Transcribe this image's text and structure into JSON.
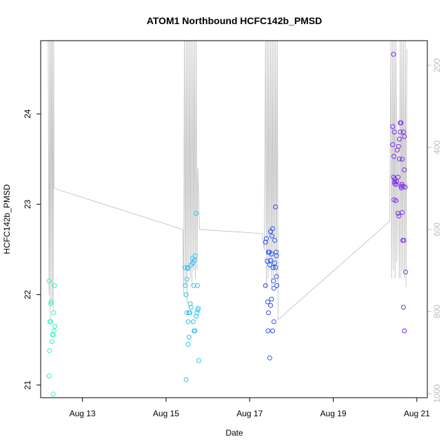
{
  "chart_data": {
    "type": "scatter",
    "title": "ATOM1 Northbound HCFC142b_PMSD",
    "xlabel": "Date",
    "ylabel": "HCFC142b_PMSD",
    "x_ticks": [
      "Aug 13",
      "Aug 15",
      "Aug 17",
      "Aug 19",
      "Aug 21"
    ],
    "x_tick_values": [
      13,
      15,
      17,
      19,
      21
    ],
    "xlim": [
      12.0,
      21.25
    ],
    "y_ticks": [
      "21",
      "22",
      "23",
      "24"
    ],
    "y_tick_values": [
      21,
      22,
      23,
      24
    ],
    "ylim": [
      20.86,
      24.81
    ],
    "y2_ticks": [
      "200",
      "400",
      "600",
      "800",
      "1000"
    ],
    "y2_tick_values": [
      200,
      400,
      600,
      800,
      1000
    ],
    "y2lim": [
      1010,
      140
    ],
    "grid": false,
    "series": [
      {
        "color": "#2cf5c6",
        "points": [
          [
            12.2,
            22.15
          ],
          [
            12.22,
            21.7
          ],
          [
            12.24,
            21.9
          ],
          [
            12.25,
            21.92
          ],
          [
            12.24,
            21.7
          ],
          [
            12.21,
            21.38
          ],
          [
            12.2,
            21.1
          ],
          [
            12.27,
            21.48
          ],
          [
            12.28,
            21.56
          ],
          [
            12.3,
            21.55
          ],
          [
            12.31,
            21.8
          ],
          [
            12.32,
            21.6
          ],
          [
            12.34,
            21.65
          ],
          [
            12.33,
            22.1
          ],
          [
            12.3,
            20.9
          ]
        ]
      },
      {
        "color": "#2ec1f5",
        "points": [
          [
            15.45,
            22.3
          ],
          [
            15.46,
            22.1
          ],
          [
            15.48,
            22.0
          ],
          [
            15.5,
            22.17
          ],
          [
            15.52,
            22.29
          ],
          [
            15.51,
            22.3
          ],
          [
            15.5,
            21.8
          ],
          [
            15.53,
            21.7
          ],
          [
            15.55,
            21.8
          ],
          [
            15.57,
            21.8
          ],
          [
            15.58,
            21.9
          ],
          [
            15.6,
            21.86
          ],
          [
            15.6,
            22.33
          ],
          [
            15.63,
            22.4
          ],
          [
            15.64,
            22.35
          ],
          [
            15.65,
            21.7
          ],
          [
            15.66,
            22.1
          ],
          [
            15.68,
            22.38
          ],
          [
            15.7,
            22.43
          ],
          [
            15.67,
            21.6
          ],
          [
            15.69,
            21.6
          ],
          [
            15.72,
            21.76
          ],
          [
            15.74,
            21.8
          ],
          [
            15.76,
            21.83
          ],
          [
            15.77,
            21.85
          ],
          [
            15.75,
            22.1
          ],
          [
            15.72,
            22.9
          ],
          [
            15.78,
            21.27
          ],
          [
            15.55,
            21.53
          ],
          [
            15.53,
            21.45
          ],
          [
            15.48,
            21.06
          ]
        ]
      },
      {
        "color": "#2750f0",
        "points": [
          [
            17.38,
            22.58
          ],
          [
            17.4,
            22.62
          ],
          [
            17.42,
            22.37
          ],
          [
            17.38,
            22.1
          ],
          [
            17.43,
            21.92
          ],
          [
            17.45,
            22.47
          ],
          [
            17.47,
            22.47
          ],
          [
            17.48,
            22.33
          ],
          [
            17.5,
            22.38
          ],
          [
            17.5,
            22.7
          ],
          [
            17.52,
            22.45
          ],
          [
            17.53,
            22.65
          ],
          [
            17.55,
            22.73
          ],
          [
            17.56,
            22.3
          ],
          [
            17.57,
            22.15
          ],
          [
            17.58,
            22.07
          ],
          [
            17.6,
            22.6
          ],
          [
            17.6,
            22.35
          ],
          [
            17.62,
            22.3
          ],
          [
            17.63,
            22.47
          ],
          [
            17.64,
            22.43
          ],
          [
            17.65,
            22.1
          ],
          [
            17.62,
            22.97
          ],
          [
            17.64,
            22.2
          ],
          [
            17.5,
            21.88
          ],
          [
            17.52,
            21.95
          ],
          [
            17.45,
            21.8
          ],
          [
            17.44,
            21.6
          ],
          [
            17.55,
            21.6
          ],
          [
            17.58,
            21.7
          ],
          [
            17.48,
            21.3
          ]
        ]
      },
      {
        "color": "#7a28ef",
        "points": [
          [
            20.44,
            24.66
          ],
          [
            20.42,
            23.86
          ],
          [
            20.46,
            23.8
          ],
          [
            20.45,
            23.53
          ],
          [
            20.42,
            23.66
          ],
          [
            20.44,
            23.3
          ],
          [
            20.47,
            23.28
          ],
          [
            20.47,
            23.23
          ],
          [
            20.5,
            23.22
          ],
          [
            20.52,
            23.25
          ],
          [
            20.55,
            23.3
          ],
          [
            20.53,
            23.6
          ],
          [
            20.56,
            23.64
          ],
          [
            20.58,
            23.72
          ],
          [
            20.58,
            23.5
          ],
          [
            20.6,
            23.9
          ],
          [
            20.6,
            23.8
          ],
          [
            20.62,
            23.9
          ],
          [
            20.62,
            23.2
          ],
          [
            20.63,
            23.18
          ],
          [
            20.64,
            23.22
          ],
          [
            20.65,
            23.5
          ],
          [
            20.67,
            23.2
          ],
          [
            20.68,
            23.8
          ],
          [
            20.7,
            23.75
          ],
          [
            20.7,
            23.38
          ],
          [
            20.72,
            23.19
          ],
          [
            20.45,
            23.05
          ],
          [
            20.5,
            23.04
          ],
          [
            20.55,
            22.9
          ],
          [
            20.57,
            22.87
          ],
          [
            20.65,
            22.91
          ],
          [
            20.66,
            22.6
          ],
          [
            20.69,
            22.6
          ],
          [
            20.73,
            22.25
          ],
          [
            20.68,
            21.86
          ],
          [
            20.7,
            21.6
          ],
          [
            20.47,
            23.25
          ]
        ]
      }
    ],
    "secondary_line": {
      "color": "#c8c8c8",
      "points": [
        [
          12.18,
          140
        ],
        [
          12.2,
          760
        ],
        [
          12.22,
          140
        ],
        [
          12.23,
          820
        ],
        [
          12.25,
          140
        ],
        [
          12.27,
          780
        ],
        [
          12.28,
          140
        ],
        [
          12.3,
          800
        ],
        [
          12.31,
          140
        ],
        [
          12.32,
          500
        ],
        [
          15.4,
          600
        ],
        [
          15.42,
          760
        ],
        [
          15.44,
          140
        ],
        [
          15.46,
          740
        ],
        [
          15.48,
          140
        ],
        [
          15.5,
          780
        ],
        [
          15.52,
          140
        ],
        [
          15.54,
          700
        ],
        [
          15.56,
          140
        ],
        [
          15.58,
          720
        ],
        [
          15.6,
          140
        ],
        [
          15.62,
          740
        ],
        [
          15.64,
          140
        ],
        [
          15.66,
          700
        ],
        [
          15.68,
          140
        ],
        [
          15.7,
          720
        ],
        [
          15.72,
          140
        ],
        [
          15.74,
          700
        ],
        [
          15.76,
          450
        ],
        [
          15.8,
          600
        ],
        [
          17.3,
          610
        ],
        [
          17.35,
          650
        ],
        [
          17.38,
          140
        ],
        [
          17.4,
          740
        ],
        [
          17.42,
          140
        ],
        [
          17.44,
          720
        ],
        [
          17.46,
          140
        ],
        [
          17.48,
          700
        ],
        [
          17.5,
          140
        ],
        [
          17.52,
          740
        ],
        [
          17.54,
          140
        ],
        [
          17.56,
          720
        ],
        [
          17.58,
          140
        ],
        [
          17.6,
          700
        ],
        [
          17.62,
          140
        ],
        [
          17.64,
          720
        ],
        [
          17.66,
          140
        ],
        [
          17.68,
          820
        ],
        [
          20.35,
          580
        ],
        [
          20.38,
          140
        ],
        [
          20.4,
          720
        ],
        [
          20.42,
          140
        ],
        [
          20.44,
          700
        ],
        [
          20.46,
          140
        ],
        [
          20.48,
          720
        ],
        [
          20.5,
          140
        ],
        [
          20.52,
          680
        ],
        [
          20.55,
          360
        ],
        [
          20.58,
          720
        ],
        [
          20.6,
          140
        ],
        [
          20.62,
          720
        ],
        [
          20.64,
          140
        ],
        [
          20.66,
          700
        ],
        [
          20.68,
          140
        ],
        [
          20.7,
          720
        ],
        [
          20.72,
          140
        ],
        [
          20.74,
          740
        ],
        [
          20.76,
          160
        ]
      ]
    }
  }
}
